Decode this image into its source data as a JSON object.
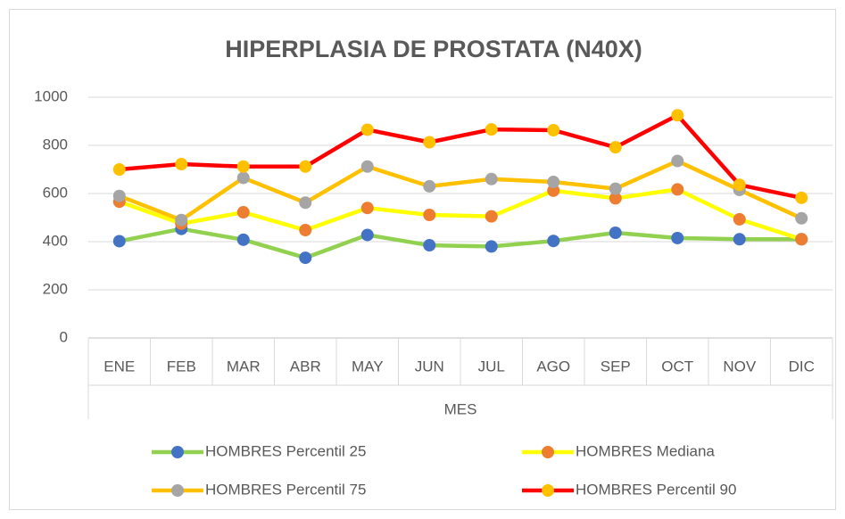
{
  "chart_data": {
    "type": "line",
    "title": "HIPERPLASIA DE PROSTATA (N40X)",
    "x_label": "MES",
    "categories": [
      "ENE",
      "FEB",
      "MAR",
      "ABR",
      "MAY",
      "JUN",
      "JUL",
      "AGO",
      "SEP",
      "OCT",
      "NOV",
      "DIC"
    ],
    "series": [
      {
        "name": "HOMBRES Percentil 25",
        "color": "#92d050",
        "marker_color": "#4472c4",
        "values": [
          402,
          453,
          408,
          333,
          428,
          385,
          380,
          403,
          437,
          415,
          410,
          410
        ]
      },
      {
        "name": "HOMBRES Mediana",
        "color": "#ffff00",
        "marker_color": "#ed7d31",
        "values": [
          566,
          475,
          522,
          448,
          540,
          511,
          505,
          612,
          580,
          617,
          493,
          410
        ]
      },
      {
        "name": "HOMBRES Percentil 75",
        "color": "#ffc000",
        "marker_color": "#a5a5a5",
        "values": [
          590,
          490,
          665,
          562,
          712,
          630,
          660,
          648,
          620,
          735,
          615,
          497
        ]
      },
      {
        "name": "HOMBRES Percentil 90",
        "color": "#ff0000",
        "marker_color": "#ffc000",
        "values": [
          700,
          722,
          712,
          712,
          865,
          813,
          866,
          863,
          792,
          925,
          636,
          582
        ]
      }
    ],
    "ylim": [
      0,
      1000
    ],
    "yticks": [
      0,
      200,
      400,
      600,
      800,
      1000
    ],
    "grid": true,
    "legend": "bottom"
  }
}
